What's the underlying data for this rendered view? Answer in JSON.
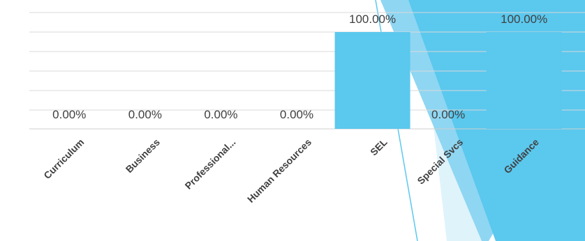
{
  "chart_data": {
    "type": "bar",
    "categories": [
      "Curriculum",
      "Business",
      "Professional...",
      "Human Resources",
      "SEL",
      "Special Svcs",
      "Guidance"
    ],
    "values": [
      0,
      0,
      0,
      0,
      100,
      0,
      100
    ],
    "data_labels": [
      "0.00%",
      "0.00%",
      "0.00%",
      "0.00%",
      "100.00%",
      "0.00%",
      "100.00%"
    ],
    "title": "",
    "xlabel": "",
    "ylabel": "",
    "ylim": [
      0,
      100
    ],
    "grid": true,
    "legend": "none"
  },
  "colors": {
    "bar": "#5bc8ee",
    "gridline": "#d9d9d9",
    "label_text": "#404040",
    "category_text": "#404040",
    "deco_dark": "#5bc8ee",
    "deco_mid": "#8fd6f2",
    "deco_light": "#dff3fb",
    "deco_line": "#5bc8ee"
  }
}
